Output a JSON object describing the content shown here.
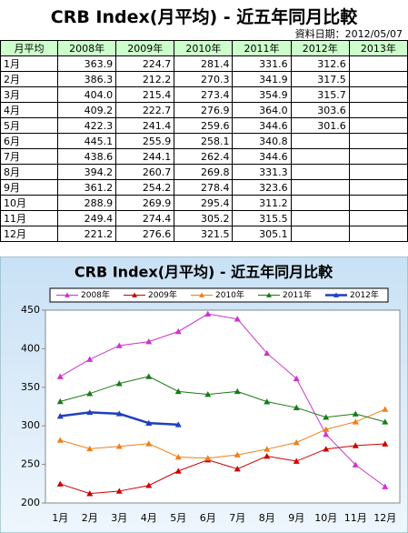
{
  "header": {
    "title": "CRB Index(月平均) - 近五年同月比較",
    "date": "資料日期：2012/05/07"
  },
  "table": {
    "header": [
      "月平均",
      "2008年",
      "2009年",
      "2010年",
      "2011年",
      "2012年",
      "2013年"
    ],
    "rows": [
      [
        "1月",
        "363.9",
        "224.7",
        "281.4",
        "331.6",
        "312.6"
      ],
      [
        "2月",
        "386.3",
        "212.2",
        "270.3",
        "341.9",
        "317.5"
      ],
      [
        "3月",
        "404.0",
        "215.4",
        "273.4",
        "354.9",
        "315.7"
      ],
      [
        "4月",
        "409.2",
        "222.7",
        "276.9",
        "364.0",
        "303.6"
      ],
      [
        "5月",
        "422.3",
        "241.4",
        "259.6",
        "344.6",
        "301.6"
      ],
      [
        "6月",
        "445.1",
        "255.9",
        "258.1",
        "340.8"
      ],
      [
        "7月",
        "438.6",
        "244.1",
        "262.4",
        "344.6"
      ],
      [
        "8月",
        "394.2",
        "260.7",
        "269.8",
        "331.3"
      ],
      [
        "9月",
        "361.2",
        "254.2",
        "278.4",
        "323.6"
      ],
      [
        "10月",
        "288.9",
        "269.9",
        "295.4",
        "311.2"
      ],
      [
        "11月",
        "249.4",
        "274.4",
        "305.2",
        "315.5"
      ],
      [
        "12月",
        "221.2",
        "276.6",
        "321.5",
        "305.1"
      ]
    ]
  },
  "chart_data": {
    "type": "line",
    "title": "CRB Index(月平均) - 近五年同月比較",
    "categories": [
      "1月",
      "2月",
      "3月",
      "4月",
      "5月",
      "6月",
      "7月",
      "8月",
      "9月",
      "10月",
      "11月",
      "12月"
    ],
    "series": [
      {
        "name": "2008年",
        "color": "#cc33cc",
        "values": [
          363.9,
          386.3,
          404.0,
          409.2,
          422.3,
          445.1,
          438.6,
          394.2,
          361.2,
          288.9,
          249.4,
          221.2
        ]
      },
      {
        "name": "2009年",
        "color": "#cc0000",
        "values": [
          224.7,
          212.2,
          215.4,
          222.7,
          241.4,
          255.9,
          244.1,
          260.7,
          254.2,
          269.9,
          274.4,
          276.6
        ]
      },
      {
        "name": "2010年",
        "color": "#ee7f1a",
        "values": [
          281.4,
          270.3,
          273.4,
          276.9,
          259.6,
          258.1,
          262.4,
          269.8,
          278.4,
          295.4,
          305.2,
          321.5
        ]
      },
      {
        "name": "2011年",
        "color": "#1a7a1a",
        "values": [
          331.6,
          341.9,
          354.9,
          364.0,
          344.6,
          340.8,
          344.6,
          331.3,
          323.6,
          311.2,
          315.5,
          305.1
        ]
      },
      {
        "name": "2012年",
        "color": "#1f3fbf",
        "values": [
          312.6,
          317.5,
          315.7,
          303.6,
          301.6,
          null,
          null,
          null,
          null,
          null,
          null,
          null
        ]
      }
    ],
    "ylim": [
      200,
      450
    ],
    "yticks": [
      200,
      250,
      300,
      350,
      400,
      450
    ],
    "grid": false
  }
}
